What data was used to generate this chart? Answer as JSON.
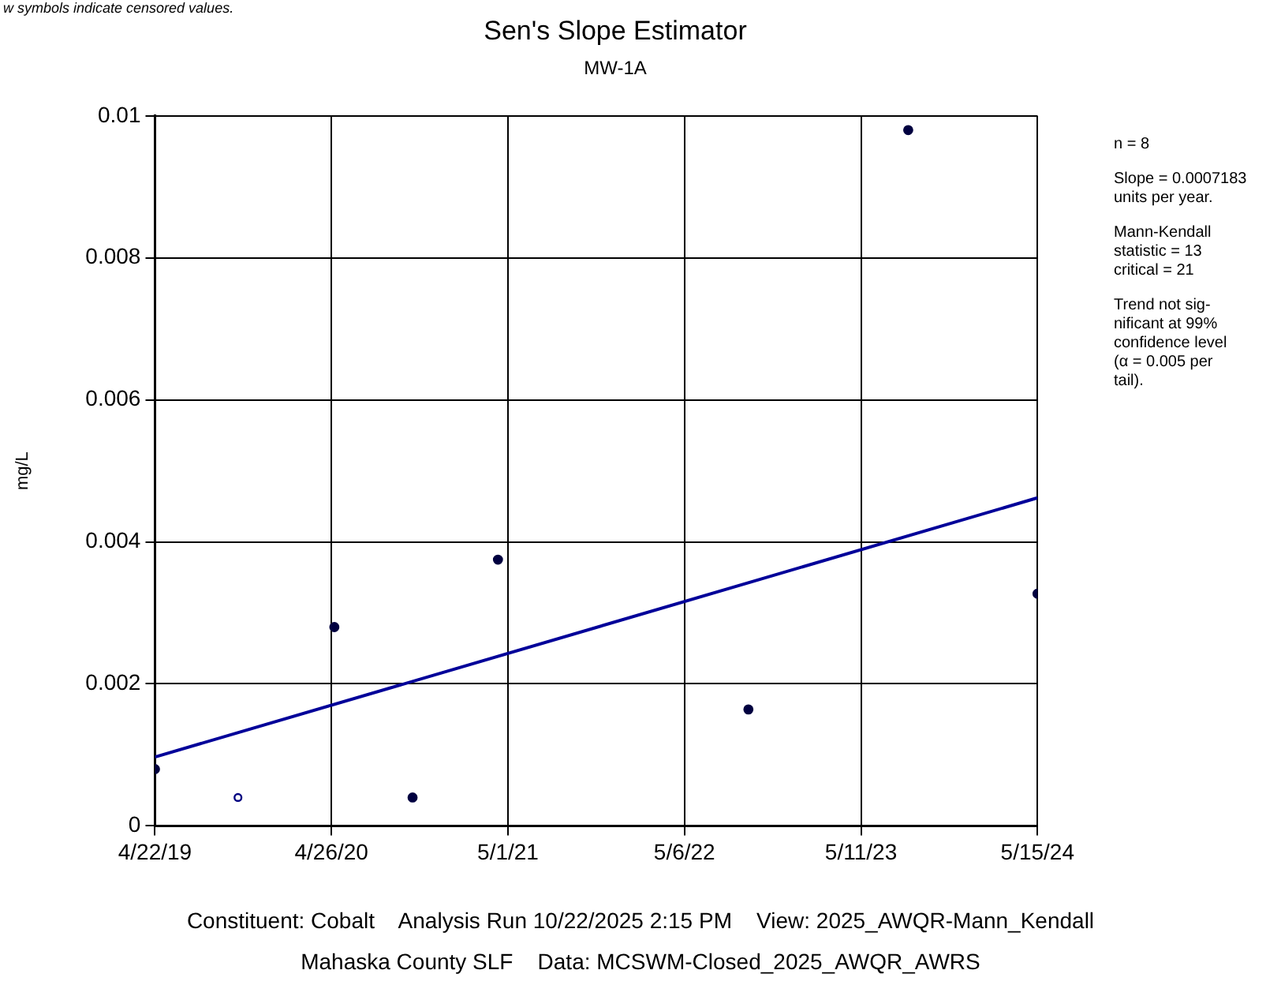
{
  "chart_data": {
    "type": "scatter",
    "title": "Sen's Slope Estimator",
    "subtitle": "MW-1A",
    "ylabel": "mg/L",
    "xlim": [
      "2019-04-22",
      "2024-05-15"
    ],
    "xticks": [
      {
        "value": "2019-04-22",
        "label": "4/22/19"
      },
      {
        "value": "2020-04-26",
        "label": "4/26/20"
      },
      {
        "value": "2021-05-01",
        "label": "5/1/21"
      },
      {
        "value": "2022-05-06",
        "label": "5/6/22"
      },
      {
        "value": "2023-05-11",
        "label": "5/11/23"
      },
      {
        "value": "2024-05-15",
        "label": "5/15/24"
      }
    ],
    "ylim": [
      0,
      0.01
    ],
    "yticks": [
      0,
      0.002,
      0.004,
      0.006,
      0.008,
      0.01
    ],
    "series": [
      {
        "marker": "circle",
        "color": "#000040",
        "x": [
          "2019-04-22",
          "2020-05-02",
          "2020-10-13",
          "2021-04-10",
          "2022-09-17",
          "2023-08-18",
          "2024-05-15"
        ],
        "values": [
          0.0008,
          0.0028,
          0.0004,
          0.00375,
          0.00164,
          0.0098,
          0.00327
        ]
      },
      {
        "marker": "circle",
        "color": "#000080",
        "x": [
          "2019-10-13"
        ],
        "values": [
          0.0004
        ]
      },
      {
        "type": "line",
        "marker": "none",
        "color": "#000099",
        "x": [
          "2019-04-22",
          "2024-05-15"
        ],
        "values": [
          0.00097,
          0.00462
        ]
      }
    ],
    "grid": true,
    "legend": false,
    "line_style": "solid",
    "annotations": [
      "w symbols indicate censored values.",
      "n = 8",
      "Slope = 0.0007183\nunits per year.",
      "Mann-Kendall\nstatistic = 13\ncritical = 21",
      "Trend not sig-\nnificant at 99%\nconfidence level\n(α = 0.005 per\ntail).",
      "Constituent: Cobalt    Analysis Run 10/22/2025 2:15 PM    View: 2025_AWQR-Mann_Kendall",
      "Mahaska County SLF    Data: MCSWM-Closed_2025_AWQR_AWRS"
    ]
  }
}
